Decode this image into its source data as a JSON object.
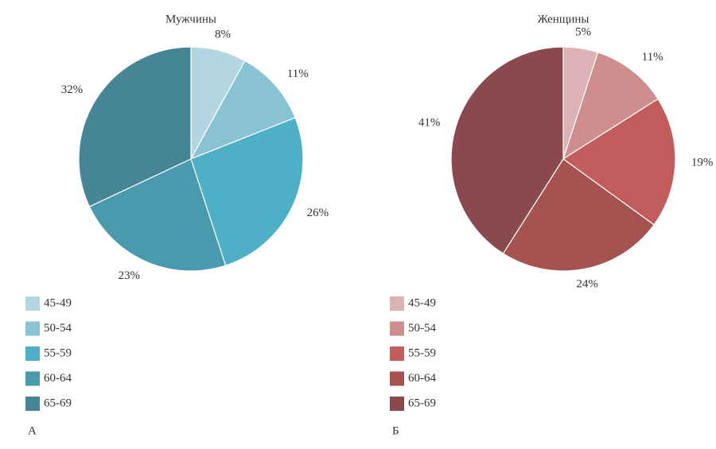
{
  "chart_data": [
    {
      "type": "pie",
      "title": "Мужчины",
      "panel_label": "А",
      "categories": [
        "45-49",
        "50-54",
        "55-59",
        "60-64",
        "65-69"
      ],
      "values": [
        8,
        11,
        26,
        23,
        32
      ],
      "value_labels": [
        "8%",
        "11%",
        "26%",
        "23%",
        "32%"
      ],
      "colors": [
        "#b4d6e0",
        "#88c2d3",
        "#4db0c6",
        "#4a9aad",
        "#468596"
      ]
    },
    {
      "type": "pie",
      "title": "Женщины",
      "panel_label": "Б",
      "categories": [
        "45-49",
        "50-54",
        "55-59",
        "60-64",
        "65-69"
      ],
      "values": [
        5,
        11,
        19,
        24,
        41
      ],
      "value_labels": [
        "5%",
        "11%",
        "19%",
        "24%",
        "41%"
      ],
      "colors": [
        "#dcb2b4",
        "#cf8e8e",
        "#c35d5d",
        "#a55350",
        "#8a4a4d"
      ]
    }
  ]
}
